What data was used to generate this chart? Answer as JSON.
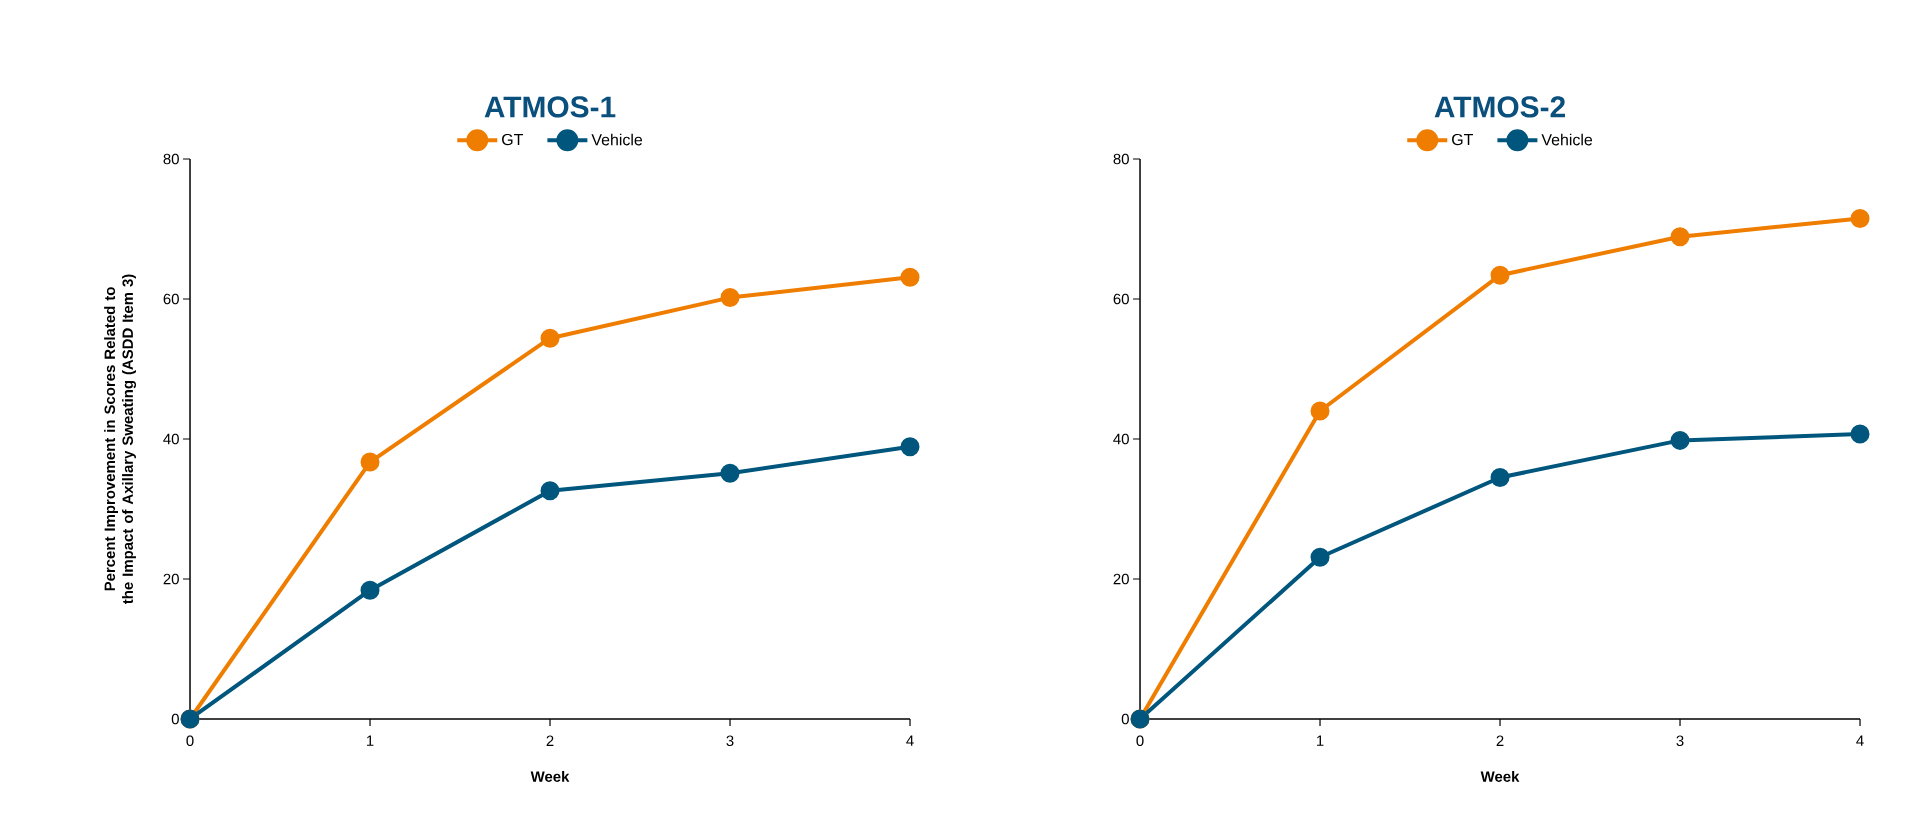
{
  "chart_data": [
    {
      "type": "line",
      "title": "ATMOS-1",
      "xlabel": "Week",
      "ylabel": "Percent Improvement in Scores Related to the Impact of Axillary Sweating (ASDD Item 3)",
      "x": [
        0,
        1,
        2,
        3,
        4
      ],
      "xlim": [
        0,
        4
      ],
      "xticks": [
        0,
        1,
        2,
        3,
        4
      ],
      "ylim": [
        0,
        80
      ],
      "yticks": [
        0,
        20,
        40,
        60,
        80
      ],
      "legend": "top",
      "marker": "circle",
      "line_style": "solid",
      "series": [
        {
          "name": "GT",
          "color": "#ef7d00",
          "values": [
            0,
            36.7,
            54.4,
            60.2,
            63.1
          ]
        },
        {
          "name": "Vehicle",
          "color": "#00567d",
          "values": [
            0,
            18.4,
            32.6,
            35.1,
            38.9
          ]
        }
      ]
    },
    {
      "type": "line",
      "title": "ATMOS-2",
      "xlabel": "Week",
      "x": [
        0,
        1,
        2,
        3,
        4
      ],
      "xlim": [
        0,
        4
      ],
      "xticks": [
        0,
        1,
        2,
        3,
        4
      ],
      "ylim": [
        0,
        80
      ],
      "yticks": [
        0,
        20,
        40,
        60,
        80
      ],
      "legend": "top",
      "marker": "circle",
      "line_style": "solid",
      "series": [
        {
          "name": "GT",
          "color": "#ef7d00",
          "values": [
            0,
            44.0,
            63.4,
            68.9,
            71.5
          ]
        },
        {
          "name": "Vehicle",
          "color": "#00567d",
          "values": [
            0,
            23.1,
            34.5,
            39.8,
            40.7
          ]
        }
      ]
    }
  ]
}
